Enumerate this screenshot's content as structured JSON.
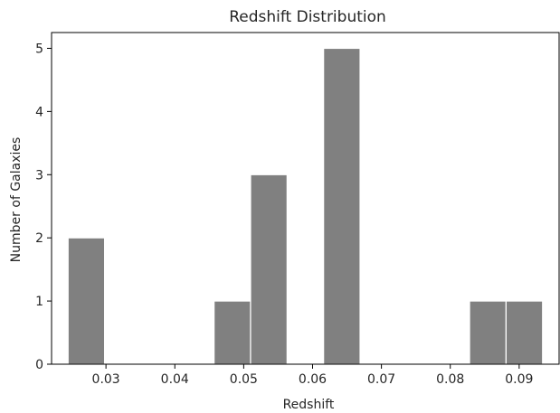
{
  "chart_data": {
    "type": "bar",
    "title": "Redshift Distribution",
    "xlabel": "Redshift",
    "ylabel": "Number of Galaxies",
    "bins": [
      {
        "start": 0.0245,
        "end": 0.0298,
        "count": 2
      },
      {
        "start": 0.0298,
        "end": 0.0351,
        "count": 0
      },
      {
        "start": 0.0351,
        "end": 0.0404,
        "count": 0
      },
      {
        "start": 0.0404,
        "end": 0.0457,
        "count": 0
      },
      {
        "start": 0.0457,
        "end": 0.051,
        "count": 1
      },
      {
        "start": 0.051,
        "end": 0.0563,
        "count": 3
      },
      {
        "start": 0.0563,
        "end": 0.0616,
        "count": 0
      },
      {
        "start": 0.0616,
        "end": 0.0669,
        "count": 5
      },
      {
        "start": 0.0669,
        "end": 0.0722,
        "count": 0
      },
      {
        "start": 0.0722,
        "end": 0.0775,
        "count": 0
      },
      {
        "start": 0.0775,
        "end": 0.0828,
        "count": 0
      },
      {
        "start": 0.0828,
        "end": 0.0881,
        "count": 1
      },
      {
        "start": 0.0881,
        "end": 0.0934,
        "count": 1
      }
    ],
    "xlim": [
      0.0221,
      0.0958
    ],
    "ylim": [
      0,
      5.25
    ],
    "xticks": [
      0.03,
      0.04,
      0.05,
      0.06,
      0.07,
      0.08,
      0.09
    ],
    "xtick_labels": [
      "0.03",
      "0.04",
      "0.05",
      "0.06",
      "0.07",
      "0.08",
      "0.09"
    ],
    "yticks": [
      0,
      1,
      2,
      3,
      4,
      5
    ],
    "ytick_labels": [
      "0",
      "1",
      "2",
      "3",
      "4",
      "5"
    ],
    "bar_color": "#808080",
    "edge_color": "#ffffff",
    "grid": false,
    "legend": "none"
  }
}
